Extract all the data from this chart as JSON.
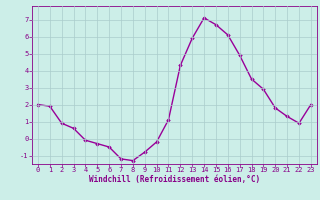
{
  "x": [
    0,
    1,
    2,
    3,
    4,
    5,
    6,
    7,
    8,
    9,
    10,
    11,
    12,
    13,
    14,
    15,
    16,
    17,
    18,
    19,
    20,
    21,
    22,
    23
  ],
  "y": [
    2.0,
    1.9,
    0.9,
    0.6,
    -0.1,
    -0.3,
    -0.5,
    -1.2,
    -1.3,
    -0.8,
    -0.2,
    1.1,
    4.3,
    5.9,
    7.1,
    6.7,
    6.1,
    4.9,
    3.5,
    2.9,
    1.8,
    1.3,
    0.9,
    2.0
  ],
  "line_color": "#990099",
  "marker": "D",
  "marker_size": 1.8,
  "xlabel": "Windchill (Refroidissement éolien,°C)",
  "xlim_min": -0.5,
  "xlim_max": 23.5,
  "ylim_min": -1.5,
  "ylim_max": 7.8,
  "yticks": [
    -1,
    0,
    1,
    2,
    3,
    4,
    5,
    6,
    7
  ],
  "xticks": [
    0,
    1,
    2,
    3,
    4,
    5,
    6,
    7,
    8,
    9,
    10,
    11,
    12,
    13,
    14,
    15,
    16,
    17,
    18,
    19,
    20,
    21,
    22,
    23
  ],
  "background_color": "#cceee8",
  "grid_color": "#aacccc",
  "tick_color": "#880088",
  "label_color": "#880088",
  "line_width": 1.0,
  "tick_fontsize": 5.0,
  "xlabel_fontsize": 5.5
}
